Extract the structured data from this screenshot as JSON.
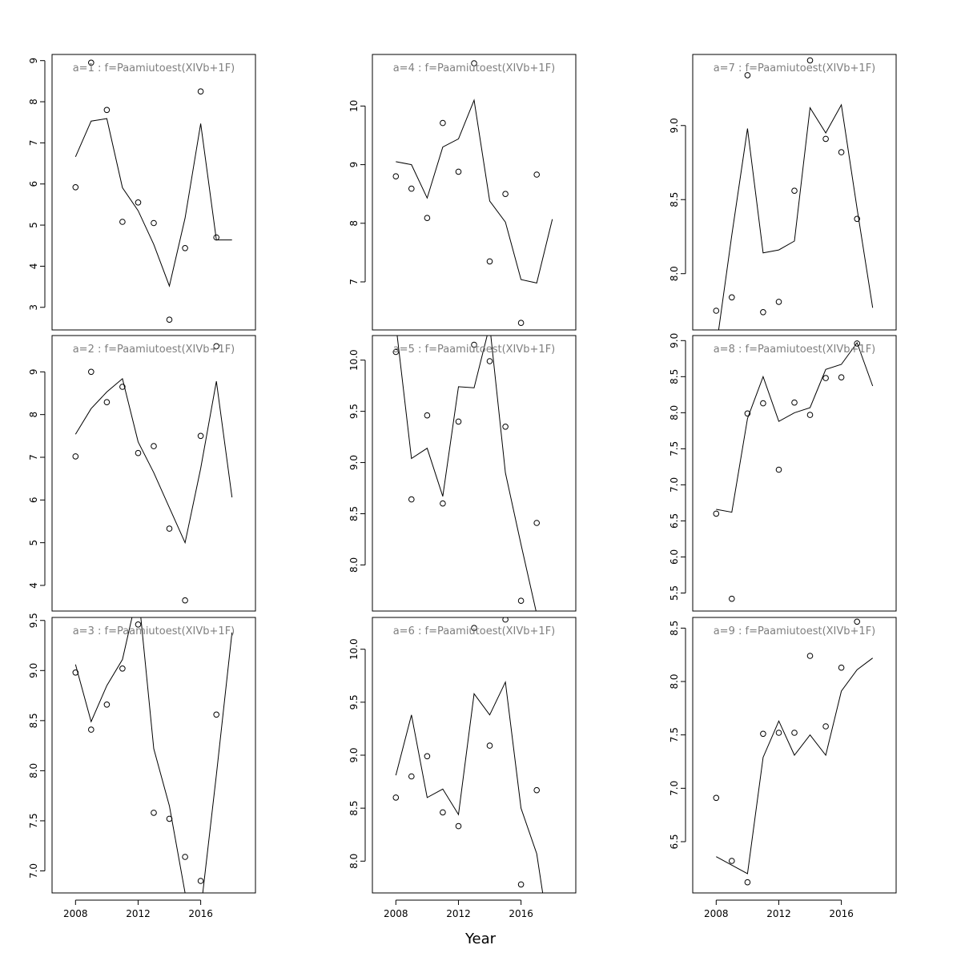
{
  "chart_data": {
    "type": "line",
    "layout": "3x3 grid, column-major",
    "xlabel": "Year",
    "x_ticks": [
      2008,
      2012,
      2016
    ],
    "years": [
      2008,
      2009,
      2010,
      2011,
      2012,
      2013,
      2014,
      2015,
      2016,
      2017,
      2018
    ],
    "panels": [
      {
        "title": "a=1  :  f=Paamiutoest(XIVb+1F)",
        "ylim": [
          2.45,
          9.15
        ],
        "yticks": [
          "3",
          "4",
          "5",
          "6",
          "7",
          "8",
          "9"
        ],
        "observed": [
          5.92,
          8.95,
          7.8,
          5.08,
          5.55,
          5.05,
          2.7,
          4.44,
          8.25,
          4.7,
          null
        ],
        "fitted": [
          6.66,
          7.53,
          7.59,
          5.91,
          5.35,
          4.53,
          3.52,
          5.17,
          7.47,
          4.64,
          4.64
        ]
      },
      {
        "title": "a=2  :  f=Paamiutoest(XIVb+1F)",
        "ylim": [
          3.4,
          9.85
        ],
        "yticks": [
          "4",
          "5",
          "6",
          "7",
          "8",
          "9"
        ],
        "observed": [
          7.02,
          9.0,
          8.29,
          8.65,
          7.1,
          7.26,
          5.33,
          3.65,
          7.5,
          9.6,
          null
        ],
        "fitted": [
          7.54,
          8.14,
          8.53,
          8.84,
          7.36,
          6.64,
          5.82,
          5.0,
          6.74,
          8.78,
          6.06
        ]
      },
      {
        "title": "a=3  :  f=Paamiutoest(XIVb+1F)",
        "ylim": [
          6.78,
          9.53
        ],
        "yticks": [
          "7.0",
          "7.5",
          "8.0",
          "8.5",
          "9.0",
          "9.5"
        ],
        "observed": [
          8.98,
          8.41,
          8.66,
          9.02,
          9.46,
          7.58,
          7.52,
          7.14,
          6.9,
          8.56,
          null
        ],
        "fitted": [
          9.06,
          8.49,
          8.85,
          9.11,
          9.8,
          8.22,
          7.65,
          6.78,
          6.6,
          7.96,
          9.38
        ]
      },
      {
        "title": "a=4  :  f=Paamiutoest(XIVb+1F)",
        "ylim": [
          6.18,
          10.88
        ],
        "yticks": [
          "7",
          "8",
          "9",
          "10"
        ],
        "observed": [
          8.8,
          8.59,
          8.09,
          9.71,
          8.88,
          10.73,
          7.35,
          8.5,
          6.3,
          8.83,
          null
        ],
        "fitted": [
          9.05,
          9.0,
          8.43,
          9.3,
          9.44,
          10.1,
          8.38,
          8.02,
          7.04,
          6.98,
          8.07
        ]
      },
      {
        "title": "a=5  :  f=Paamiutoest(XIVb+1F)",
        "ylim": [
          7.55,
          10.24
        ],
        "yticks": [
          "8.0",
          "8.5",
          "9.0",
          "9.5",
          "10.0"
        ],
        "observed": [
          10.08,
          8.64,
          9.46,
          8.6,
          9.4,
          10.15,
          9.99,
          9.35,
          7.65,
          8.41,
          null
        ],
        "fitted": [
          10.35,
          9.04,
          9.14,
          8.67,
          9.74,
          9.73,
          10.34,
          8.9,
          8.2,
          7.52,
          7.15
        ]
      },
      {
        "title": "a=6  :  f=Paamiutoest(XIVb+1F)",
        "ylim": [
          7.7,
          10.3
        ],
        "yticks": [
          "8.0",
          "8.5",
          "9.0",
          "9.5",
          "10.0"
        ],
        "observed": [
          8.6,
          8.8,
          8.99,
          8.46,
          8.33,
          10.2,
          9.09,
          10.28,
          7.78,
          8.67,
          null
        ],
        "fitted": [
          8.81,
          9.38,
          8.6,
          8.68,
          8.44,
          9.58,
          9.38,
          9.69,
          8.5,
          8.07,
          7.1
        ]
      },
      {
        "title": "a=7  :  f=Paamiutoest(XIVb+1F)",
        "ylim": [
          7.62,
          9.48
        ],
        "yticks": [
          "8.0",
          "8.5",
          "9.0"
        ],
        "observed": [
          7.75,
          7.84,
          9.34,
          7.74,
          7.81,
          8.56,
          9.44,
          8.91,
          8.82,
          8.37,
          null
        ],
        "fitted": [
          7.5,
          8.26,
          8.98,
          8.14,
          8.16,
          8.22,
          9.12,
          8.95,
          9.14,
          8.44,
          7.77
        ]
      },
      {
        "title": "a=8  :  f=Paamiutoest(XIVb+1F)",
        "ylim": [
          5.25,
          9.07
        ],
        "yticks": [
          "5.5",
          "6.0",
          "6.5",
          "7.0",
          "7.5",
          "8.0",
          "8.5",
          "9.0"
        ],
        "observed": [
          6.6,
          5.42,
          7.99,
          8.13,
          7.21,
          8.14,
          7.97,
          8.48,
          8.49,
          8.96,
          null
        ],
        "fitted": [
          6.66,
          6.62,
          7.92,
          8.5,
          7.88,
          8.0,
          8.07,
          8.6,
          8.67,
          8.97,
          8.37
        ]
      },
      {
        "title": "a=9  :  f=Paamiutoest(XIVb+1F)",
        "ylim": [
          6.02,
          8.6
        ],
        "yticks": [
          "6.5",
          "7.0",
          "7.5",
          "8.0",
          "8.5"
        ],
        "observed": [
          6.91,
          6.32,
          6.12,
          7.51,
          7.52,
          7.52,
          8.24,
          7.58,
          8.13,
          8.56,
          null
        ],
        "fitted": [
          6.36,
          6.28,
          6.2,
          7.29,
          7.63,
          7.31,
          7.5,
          7.31,
          7.91,
          8.11,
          8.22
        ]
      }
    ]
  }
}
